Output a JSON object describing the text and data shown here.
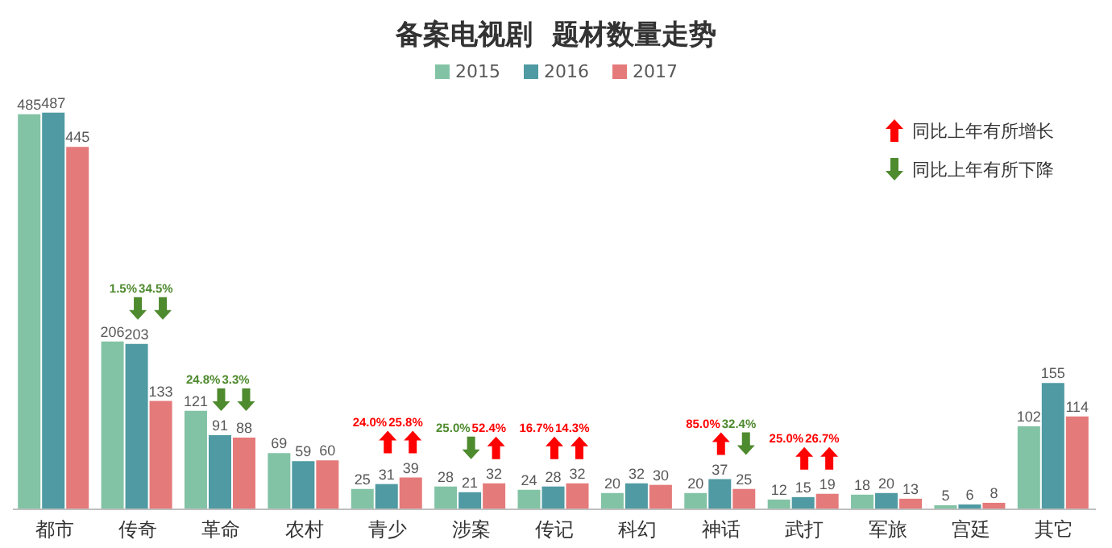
{
  "chart_data": {
    "type": "bar",
    "title": "备案电视剧  题材数量走势",
    "categories": [
      "都市",
      "传奇",
      "革命",
      "农村",
      "青少",
      "涉案",
      "传记",
      "科幻",
      "神话",
      "武打",
      "军旅",
      "宫廷",
      "其它"
    ],
    "series": [
      {
        "name": "2015",
        "color": "#82c3a5",
        "values": [
          485,
          206,
          121,
          69,
          25,
          28,
          24,
          20,
          20,
          12,
          18,
          5,
          102
        ]
      },
      {
        "name": "2016",
        "color": "#4f9aa3",
        "values": [
          487,
          203,
          91,
          59,
          31,
          21,
          28,
          32,
          37,
          15,
          20,
          6,
          155
        ]
      },
      {
        "name": "2017",
        "color": "#e57a7a",
        "values": [
          445,
          133,
          88,
          60,
          39,
          32,
          32,
          30,
          25,
          19,
          13,
          8,
          114
        ]
      }
    ],
    "data_labels": true,
    "legend": "top",
    "grid": false,
    "annotations": [
      "1.5%",
      "34.5%",
      "24.8%",
      "3.3%",
      "24.0%",
      "25.8%",
      "25.0%",
      "52.4%",
      "16.7%",
      "14.3%",
      "85.0%",
      "32.4%",
      "25.0%",
      "26.7%",
      "同比上年有所增长",
      "同比上年有所下降"
    ]
  }
}
